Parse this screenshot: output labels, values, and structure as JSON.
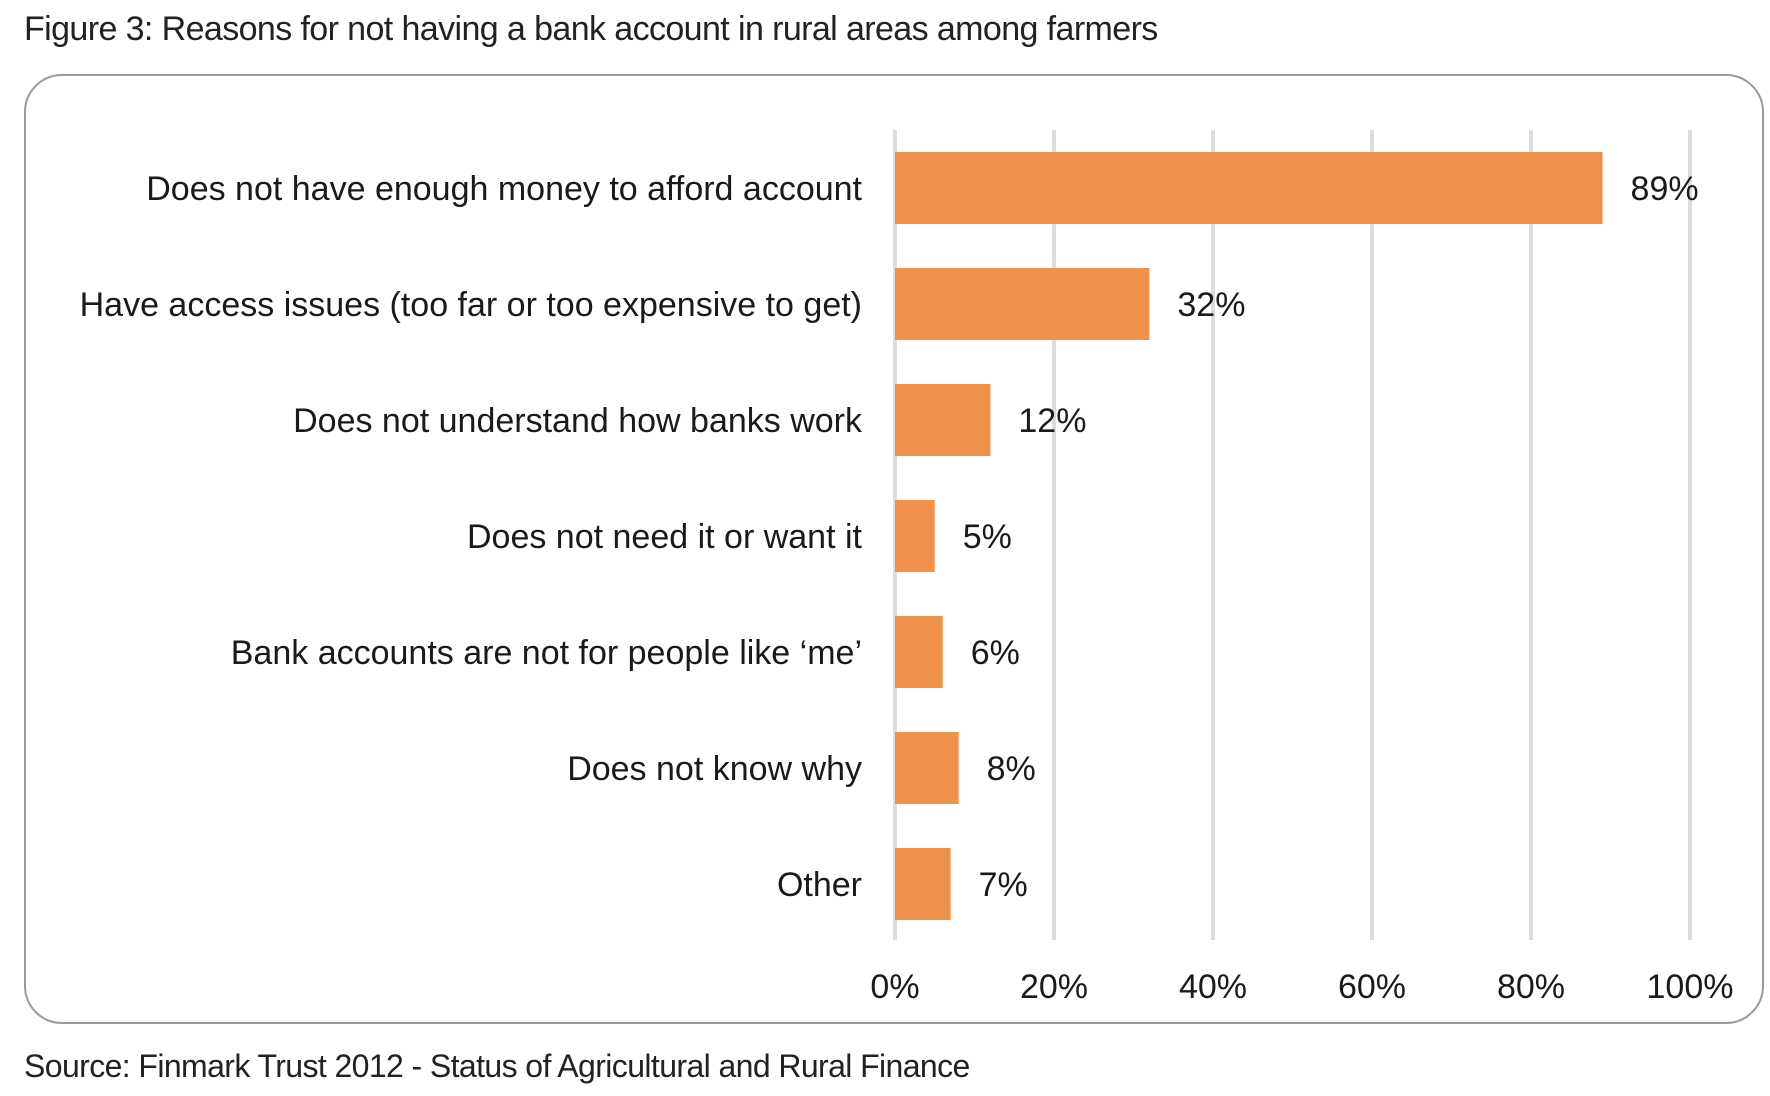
{
  "figure": {
    "title": "Figure 3: Reasons for not having a bank account in rural areas among farmers",
    "source": "Source: Finmark Trust 2012 - Status of Agricultural and Rural Finance"
  },
  "chart_data": {
    "type": "bar",
    "orientation": "horizontal",
    "title": "Figure 3: Reasons for not having a bank account in rural areas among farmers",
    "categories": [
      "Does not have enough money to afford account",
      "Have access issues (too far or too expensive to get)",
      "Does not understand how banks work",
      "Does not need it or want it",
      "Bank accounts are not for people like ‘me’",
      "Does not know why",
      "Other"
    ],
    "values": [
      89,
      32,
      12,
      5,
      6,
      8,
      7
    ],
    "value_labels": [
      "89%",
      "32%",
      "12%",
      "5%",
      "6%",
      "8%",
      "7%"
    ],
    "xlim": [
      0,
      100
    ],
    "xticks": [
      0,
      20,
      40,
      60,
      80,
      100
    ],
    "xtick_labels": [
      "0%",
      "20%",
      "40%",
      "60%",
      "80%",
      "100%"
    ],
    "xlabel": "",
    "ylabel": "",
    "grid": "vertical",
    "legend": "none",
    "colors": {
      "bar": "#f0914a",
      "grid": "#dcdcdc",
      "frame": "#9a9a9a",
      "text": "#1a1a1a"
    }
  }
}
